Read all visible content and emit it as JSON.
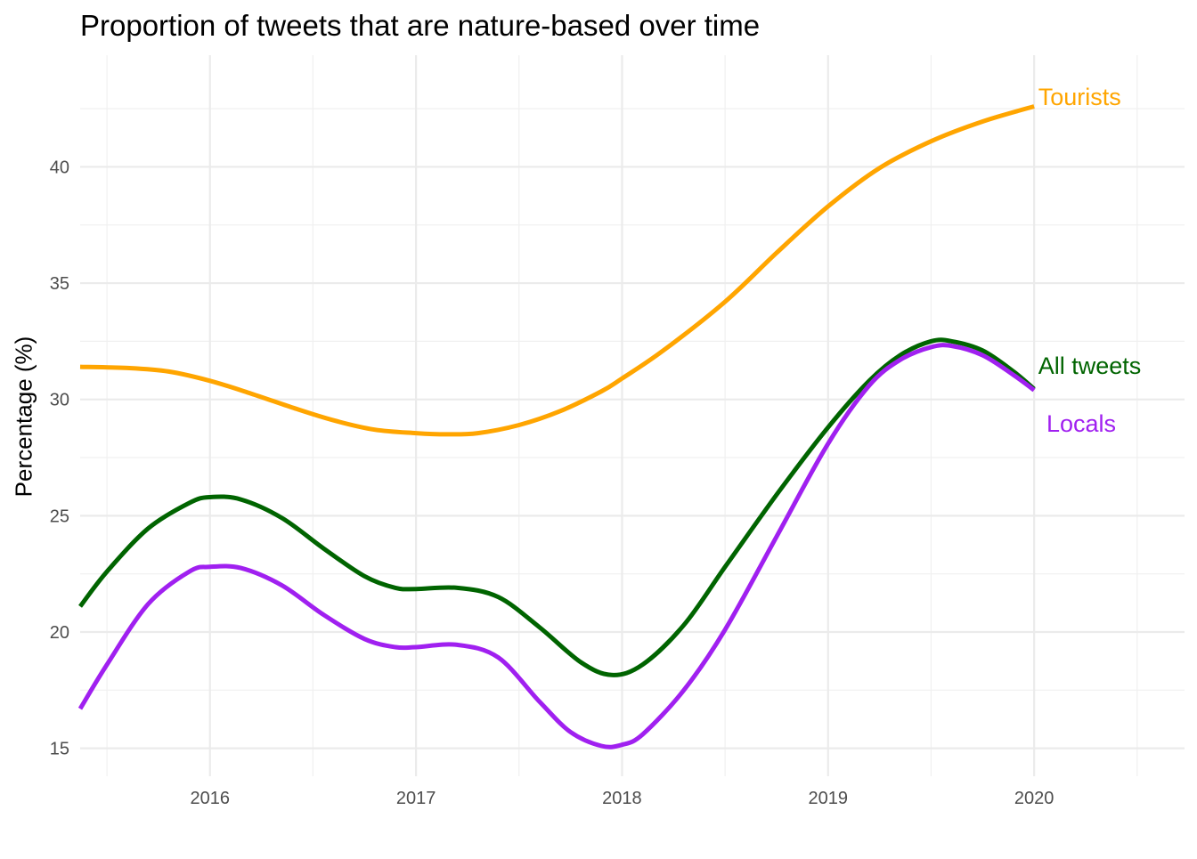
{
  "chart_data": {
    "type": "line",
    "title": "Proportion of tweets that are nature-based over time",
    "xlabel": "",
    "ylabel": "Percentage (%)",
    "xlim": [
      2015.37,
      2020.73
    ],
    "ylim": [
      13.8,
      44.8
    ],
    "x_ticks": [
      2016,
      2017,
      2018,
      2019,
      2020
    ],
    "x_tick_labels": [
      "2016",
      "2017",
      "2018",
      "2019",
      "2020"
    ],
    "y_ticks": [
      15,
      20,
      25,
      30,
      35,
      40
    ],
    "y_tick_labels": [
      "15",
      "20",
      "25",
      "30",
      "35",
      "40"
    ],
    "grid": true,
    "legend": "direct labels at line ends",
    "series": [
      {
        "name": "Tourists",
        "color": "#FFA500",
        "label_offset": [
          0.02,
          0.4
        ],
        "x": [
          2015.37,
          2015.6,
          2015.8,
          2016.0,
          2016.2,
          2016.4,
          2016.6,
          2016.8,
          2017.0,
          2017.15,
          2017.3,
          2017.5,
          2017.7,
          2017.9,
          2018.0,
          2018.2,
          2018.5,
          2018.75,
          2019.0,
          2019.25,
          2019.5,
          2019.75,
          2020.0
        ],
        "y": [
          31.4,
          31.35,
          31.2,
          30.8,
          30.25,
          29.65,
          29.1,
          28.7,
          28.55,
          28.5,
          28.55,
          28.9,
          29.5,
          30.35,
          30.9,
          32.1,
          34.2,
          36.3,
          38.3,
          39.95,
          41.1,
          41.95,
          42.6
        ]
      },
      {
        "name": "All tweets",
        "color": "#006400",
        "label_offset": [
          0.02,
          1.0
        ],
        "x": [
          2015.37,
          2015.5,
          2015.7,
          2015.9,
          2016.0,
          2016.15,
          2016.35,
          2016.55,
          2016.75,
          2016.9,
          2017.0,
          2017.2,
          2017.4,
          2017.6,
          2017.8,
          2017.95,
          2018.1,
          2018.3,
          2018.5,
          2018.75,
          2019.0,
          2019.2,
          2019.35,
          2019.5,
          2019.6,
          2019.75,
          2019.9,
          2020.0
        ],
        "y": [
          21.1,
          22.6,
          24.45,
          25.55,
          25.8,
          25.7,
          24.9,
          23.6,
          22.4,
          21.9,
          21.85,
          21.9,
          21.5,
          20.2,
          18.7,
          18.15,
          18.6,
          20.3,
          22.8,
          25.9,
          28.8,
          30.8,
          31.9,
          32.5,
          32.5,
          32.1,
          31.2,
          30.45
        ]
      },
      {
        "name": "Locals",
        "color": "#A020F0",
        "label_offset": [
          0.06,
          -1.45
        ],
        "x": [
          2015.37,
          2015.5,
          2015.7,
          2015.9,
          2016.0,
          2016.15,
          2016.35,
          2016.55,
          2016.75,
          2016.9,
          2017.0,
          2017.2,
          2017.4,
          2017.6,
          2017.75,
          2017.9,
          2018.0,
          2018.1,
          2018.3,
          2018.5,
          2018.75,
          2019.0,
          2019.2,
          2019.35,
          2019.5,
          2019.6,
          2019.75,
          2019.9,
          2020.0
        ],
        "y": [
          16.7,
          18.6,
          21.2,
          22.6,
          22.8,
          22.75,
          22.0,
          20.75,
          19.7,
          19.35,
          19.35,
          19.45,
          18.9,
          17.0,
          15.7,
          15.1,
          15.15,
          15.6,
          17.5,
          20.1,
          24.1,
          28.1,
          30.6,
          31.7,
          32.25,
          32.3,
          31.9,
          31.05,
          30.4
        ]
      }
    ]
  }
}
